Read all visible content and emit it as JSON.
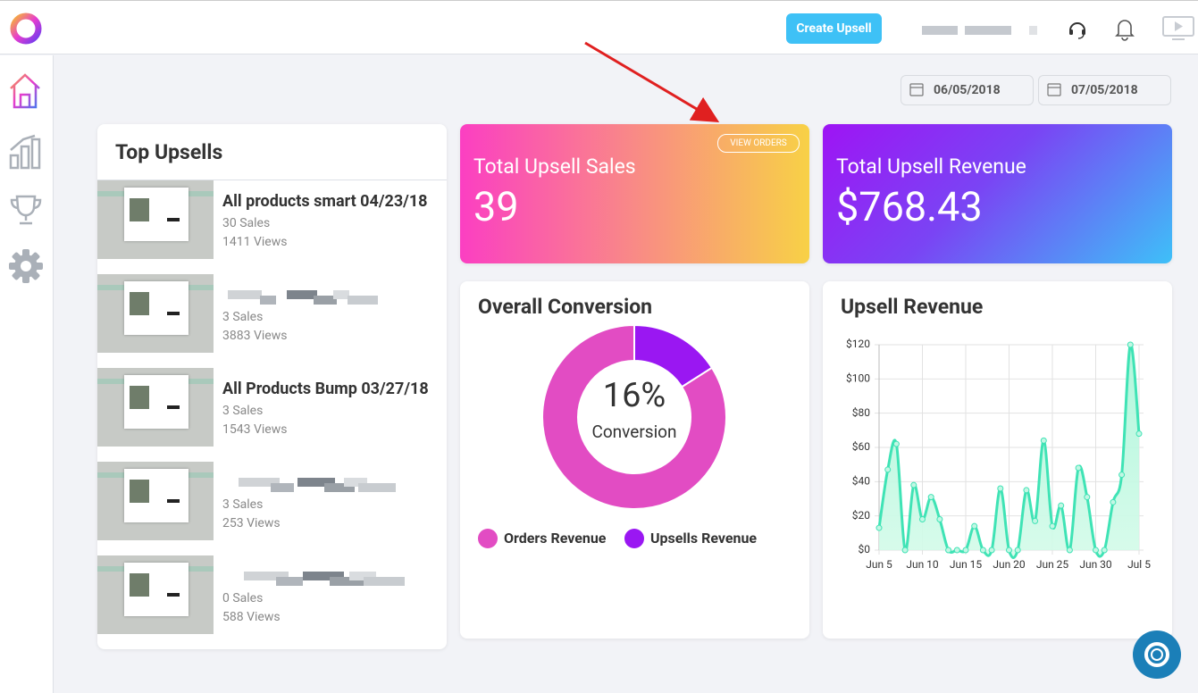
{
  "header": {
    "create_button": "Create Upsell"
  },
  "date_range": {
    "start": "06/05/2018",
    "end": "07/05/2018"
  },
  "top_upsells": {
    "title": "Top Upsells",
    "items": [
      {
        "name": "All products smart 04/23/18",
        "sales": "30 Sales",
        "views": "1411 Views"
      },
      {
        "sales": "3 Sales",
        "views": "3883 Views"
      },
      {
        "name": "All Products Bump 03/27/18",
        "sales": "3 Sales",
        "views": "1543 Views"
      },
      {
        "sales": "3 Sales",
        "views": "253 Views"
      },
      {
        "sales": "0 Sales",
        "views": "588 Views"
      }
    ]
  },
  "stats": [
    {
      "label": "Total Upsell Sales",
      "value": "39",
      "action": "VIEW ORDERS"
    },
    {
      "label": "Total Upsell Revenue",
      "value": "$768.43"
    }
  ],
  "chart_data": [
    {
      "type": "donut",
      "title": "Overall Conversion",
      "center_label": "16%",
      "center_caption": "Conversion",
      "categories": [
        "Orders Revenue",
        "Upsells Revenue"
      ],
      "values": [
        84,
        16
      ],
      "colors": [
        "#e24cc3",
        "#9a17f2"
      ]
    },
    {
      "type": "line",
      "title": "Upsell Revenue",
      "categories": [
        "Jun 5",
        null,
        null,
        null,
        null,
        "Jun 10",
        null,
        null,
        null,
        null,
        "Jun 15",
        null,
        null,
        null,
        null,
        "Jun 20",
        null,
        null,
        null,
        null,
        "Jun 25",
        null,
        null,
        null,
        null,
        "Jun 30",
        null,
        null,
        null,
        null,
        "Jul 5"
      ],
      "values": [
        13,
        47,
        62,
        0,
        38,
        18,
        31,
        18,
        0,
        0,
        0,
        14,
        0,
        0,
        36,
        0,
        0,
        35,
        17,
        64,
        14,
        26,
        0,
        48,
        31,
        0,
        0,
        28,
        44,
        120,
        68
      ],
      "color": "#3fe3b5",
      "ylim": [
        0,
        120
      ],
      "yticks": [
        {
          "value": 0,
          "label": "$0"
        },
        {
          "value": 20,
          "label": "$20"
        },
        {
          "value": 40,
          "label": "$40"
        },
        {
          "value": 60,
          "label": "$60"
        },
        {
          "value": 80,
          "label": "$80"
        },
        {
          "value": 100,
          "label": "$100"
        },
        {
          "value": 120,
          "label": "$120"
        }
      ],
      "grid": true
    }
  ]
}
